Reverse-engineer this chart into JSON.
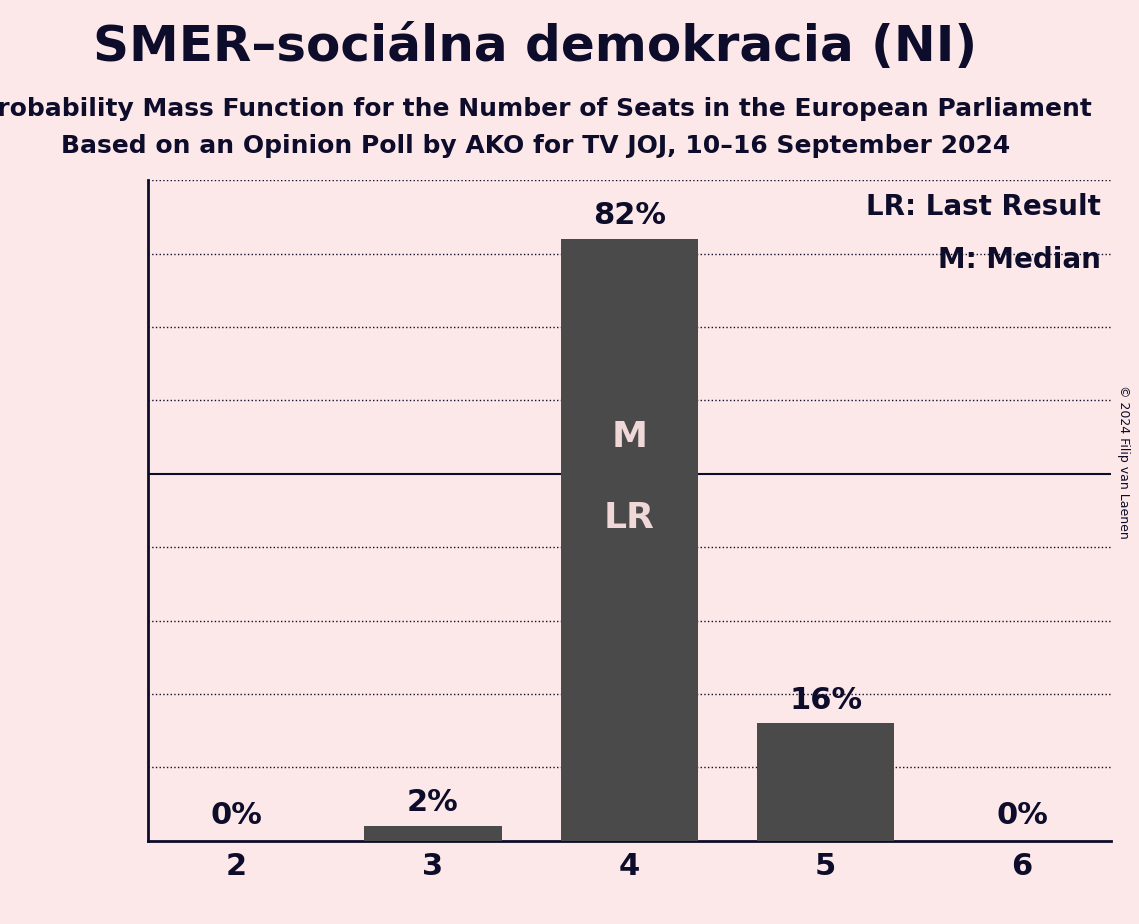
{
  "title": "SMER–sociálna demokracia (NI)",
  "subtitle1": "Probability Mass Function for the Number of Seats in the European Parliament",
  "subtitle2": "Based on an Opinion Poll by AKO for TV JOJ, 10–16 September 2024",
  "copyright": "© 2024 Filip van Laenen",
  "categories": [
    2,
    3,
    4,
    5,
    6
  ],
  "values": [
    0,
    2,
    82,
    16,
    0
  ],
  "bar_color": "#4a4a4a",
  "background_color": "#fce8e8",
  "text_color": "#0d0d2b",
  "median_seat": 4,
  "last_result_seat": 4,
  "ylim": [
    0,
    90
  ],
  "ytick_dotted": [
    10,
    20,
    30,
    40,
    60,
    70,
    80,
    90
  ],
  "ytick_solid": 50,
  "legend_lr": "LR: Last Result",
  "legend_m": "M: Median",
  "bar_label_inside_color": "#f0d8d8",
  "title_fontsize": 36,
  "subtitle_fontsize": 18,
  "label_fontsize": 22,
  "tick_fontsize": 22,
  "legend_fontsize": 20,
  "inside_label_fontsize": 26,
  "fifty_label_fontsize": 26
}
